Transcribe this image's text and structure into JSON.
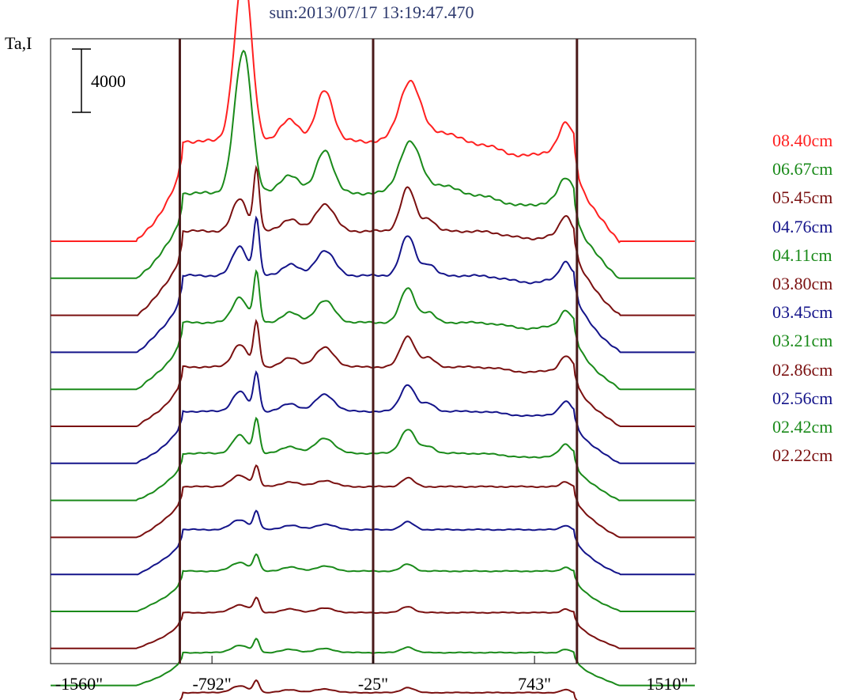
{
  "title": "sun:2013/07/17 13:19:47.470",
  "ylabel": "Ta,I",
  "scale_bar": {
    "label": "4000",
    "value": 4000
  },
  "colors": {
    "red": "#ff2020",
    "green": "#1a8a1a",
    "darkred": "#7a1010",
    "blue": "#14148a",
    "limb_line": "#4a1a1a",
    "axis": "#000000"
  },
  "chart_data": {
    "type": "line",
    "title": "sun:2013/07/17 13:19:47.470",
    "ylabel": "Ta,I",
    "xlabel": "",
    "xlim": [
      -1560,
      1510
    ],
    "x_tick_labels": [
      "-1560\"",
      "-792\"",
      "-25\"",
      "743\"",
      "1510\""
    ],
    "x_ticks": [
      -1560,
      -792,
      -25,
      743,
      1510
    ],
    "vertical_lines": [
      -945,
      -25,
      945
    ],
    "series": [
      {
        "name": "08.40cm",
        "color": "red",
        "shape": "a",
        "amp": 1.0
      },
      {
        "name": "06.67cm",
        "color": "green",
        "shape": "a",
        "amp": 0.85
      },
      {
        "name": "05.45cm",
        "color": "darkred",
        "shape": "b",
        "amp": 0.68
      },
      {
        "name": "04.76cm",
        "color": "blue",
        "shape": "b",
        "amp": 0.62
      },
      {
        "name": "04.11cm",
        "color": "green",
        "shape": "b",
        "amp": 0.54
      },
      {
        "name": "03.80cm",
        "color": "darkred",
        "shape": "b",
        "amp": 0.48
      },
      {
        "name": "03.45cm",
        "color": "blue",
        "shape": "b",
        "amp": 0.42
      },
      {
        "name": "03.21cm",
        "color": "green",
        "shape": "b",
        "amp": 0.38
      },
      {
        "name": "02.86cm",
        "color": "darkred",
        "shape": "c",
        "amp": 0.34
      },
      {
        "name": "02.56cm",
        "color": "blue",
        "shape": "c",
        "amp": 0.3
      },
      {
        "name": "02.42cm",
        "color": "green",
        "shape": "c",
        "amp": 0.27
      },
      {
        "name": "02.22cm",
        "color": "darkred",
        "shape": "c",
        "amp": 0.24
      }
    ],
    "extra_lower_traces": [
      {
        "color": "green",
        "shape": "c",
        "amp": 0.22
      },
      {
        "color": "darkred",
        "shape": "c",
        "amp": 0.2
      }
    ],
    "grid": false,
    "legend_position": "right"
  }
}
